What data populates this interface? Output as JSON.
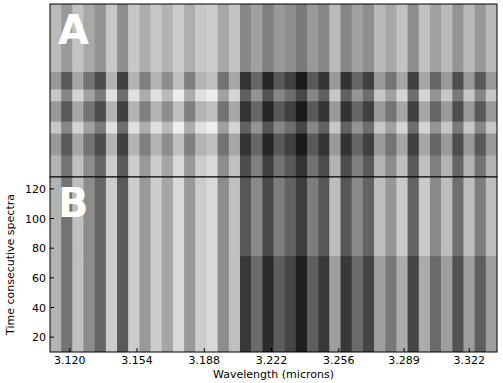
{
  "chart_data": [
    {
      "type": "heatmap",
      "title": "A",
      "xlim": [
        3.11,
        3.336
      ],
      "ylim": [
        10,
        128
      ],
      "tick_labels": false,
      "y_edges": [
        10,
        25,
        40,
        48,
        62,
        70,
        82,
        128
      ],
      "cells": [
        [
          70,
          45,
          75,
          55,
          40,
          80,
          35,
          80,
          60,
          80,
          65,
          85,
          60,
          80,
          85,
          55,
          75,
          30,
          50,
          25,
          45,
          35,
          20,
          45,
          30,
          70,
          30,
          50,
          35,
          70,
          55,
          75,
          35,
          75,
          50,
          70,
          40,
          70,
          45,
          70
        ],
        [
          60,
          35,
          65,
          45,
          30,
          70,
          25,
          70,
          50,
          70,
          55,
          75,
          50,
          70,
          75,
          45,
          65,
          20,
          40,
          15,
          35,
          25,
          10,
          35,
          20,
          60,
          20,
          40,
          25,
          60,
          45,
          65,
          25,
          65,
          40,
          60,
          30,
          60,
          35,
          60
        ],
        [
          78,
          53,
          83,
          63,
          48,
          88,
          43,
          88,
          68,
          88,
          73,
          93,
          68,
          88,
          93,
          63,
          83,
          38,
          58,
          33,
          53,
          43,
          28,
          53,
          38,
          78,
          38,
          58,
          43,
          78,
          63,
          83,
          43,
          83,
          58,
          78,
          48,
          78,
          53,
          78
        ],
        [
          60,
          35,
          65,
          45,
          30,
          70,
          25,
          70,
          50,
          70,
          55,
          75,
          50,
          70,
          75,
          45,
          65,
          20,
          40,
          15,
          35,
          25,
          10,
          35,
          20,
          60,
          20,
          40,
          25,
          60,
          45,
          65,
          25,
          65,
          40,
          60,
          30,
          60,
          35,
          60
        ],
        [
          78,
          53,
          83,
          63,
          48,
          88,
          43,
          88,
          68,
          88,
          73,
          93,
          68,
          88,
          93,
          63,
          83,
          38,
          58,
          33,
          53,
          43,
          28,
          53,
          38,
          78,
          38,
          58,
          43,
          78,
          63,
          83,
          43,
          83,
          58,
          78,
          48,
          78,
          53,
          78
        ],
        [
          60,
          35,
          65,
          45,
          30,
          70,
          25,
          70,
          50,
          70,
          55,
          75,
          50,
          70,
          75,
          45,
          65,
          20,
          40,
          15,
          35,
          25,
          10,
          35,
          20,
          60,
          20,
          40,
          25,
          60,
          45,
          65,
          25,
          65,
          40,
          60,
          30,
          60,
          35,
          60
        ],
        [
          73,
          60,
          76,
          66,
          58,
          78,
          56,
          78,
          68,
          78,
          70,
          80,
          68,
          78,
          80,
          66,
          76,
          53,
          63,
          50,
          60,
          56,
          48,
          60,
          53,
          73,
          53,
          63,
          56,
          73,
          66,
          76,
          56,
          76,
          63,
          73,
          58,
          73,
          60,
          73
        ]
      ]
    },
    {
      "type": "heatmap",
      "title": "B",
      "xlim": [
        3.11,
        3.336
      ],
      "ylim": [
        10,
        128
      ],
      "x_label": "Wavelength (microns)",
      "y_label": "Time consecutive spectra",
      "xticks": [
        {
          "value": 3.12,
          "label": "3.120"
        },
        3.154,
        3.188,
        3.222,
        3.256,
        3.289,
        3.322
      ],
      "yticks": [
        20,
        40,
        60,
        80,
        100,
        120
      ],
      "y_edges": [
        10,
        75,
        128
      ],
      "cells": [
        [
          70,
          45,
          75,
          55,
          40,
          80,
          35,
          80,
          60,
          80,
          65,
          85,
          60,
          80,
          85,
          55,
          75,
          22,
          42,
          17,
          37,
          27,
          12,
          37,
          22,
          62,
          22,
          42,
          27,
          62,
          47,
          67,
          27,
          67,
          42,
          62,
          32,
          62,
          37,
          62
        ],
        [
          70,
          45,
          75,
          55,
          40,
          80,
          35,
          80,
          60,
          80,
          65,
          85,
          60,
          80,
          85,
          55,
          75,
          34,
          54,
          29,
          49,
          39,
          24,
          49,
          34,
          74,
          34,
          54,
          39,
          74,
          59,
          79,
          39,
          79,
          54,
          74,
          44,
          74,
          49,
          74
        ]
      ]
    }
  ]
}
